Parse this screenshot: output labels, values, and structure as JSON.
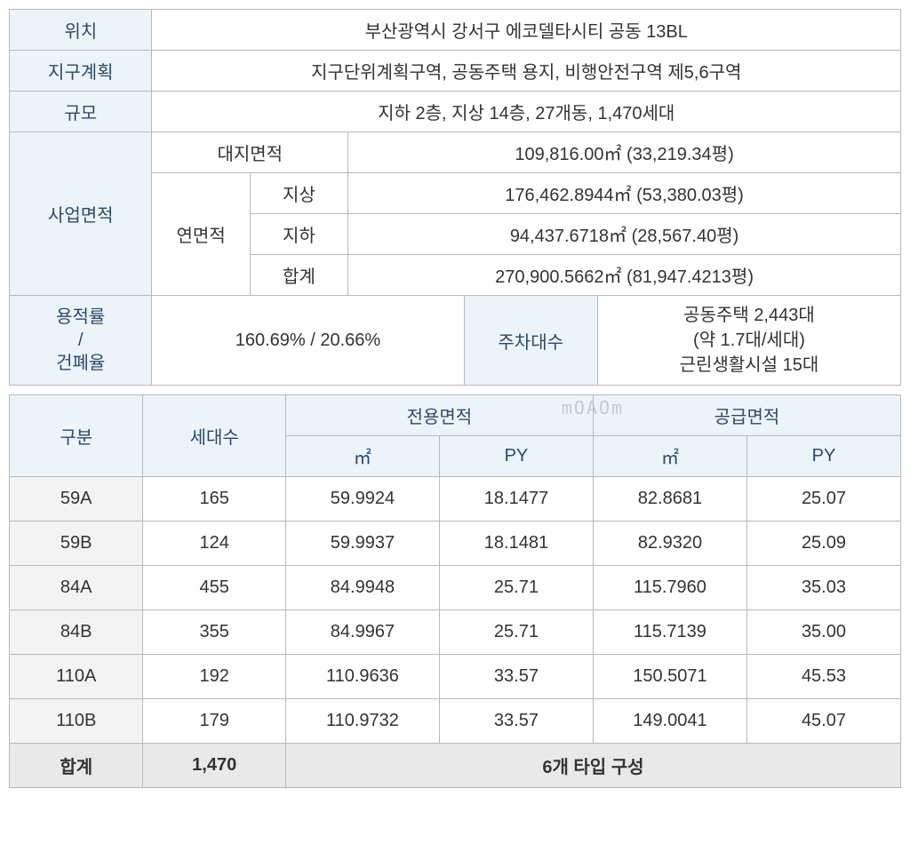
{
  "colors": {
    "header_bg": "#ecf4fa",
    "header_text": "#2a4a6a",
    "border": "#b8b8b8",
    "alt_bg": "#f3f3f3",
    "total_bg": "#e9e9e9",
    "watermark": "#c9c9c9"
  },
  "info": {
    "location_label": "위치",
    "location_value": "부산광역시 강서구 에코델타시티 공동 13BL",
    "district_label": "지구계획",
    "district_value": "지구단위계획구역, 공동주택 용지, 비행안전구역 제5,6구역",
    "scale_label": "규모",
    "scale_value": "지하 2층, 지상 14층, 27개동, 1,470세대",
    "biz_area_label": "사업면적",
    "land_area_label": "대지면적",
    "land_area_value": "109,816.00㎡ (33,219.34평)",
    "floor_area_label": "연면적",
    "above_label": "지상",
    "above_value": "176,462.8944㎡ (53,380.03평)",
    "below_label": "지하",
    "below_value": "94,437.6718㎡ (28,567.40평)",
    "sum_label": "합계",
    "sum_value": "270,900.5662㎡ (81,947.4213평)",
    "ratio_label": "용적률\n/\n건폐율",
    "ratio_value": "160.69% / 20.66%",
    "parking_label": "주차대수",
    "parking_l1": "공동주택 2,443대",
    "parking_l2": "(약 1.7대/세대)",
    "parking_l3": "근린생활시설 15대"
  },
  "units": {
    "headers": {
      "type": "구분",
      "count": "세대수",
      "exclusive": "전용면적",
      "supply": "공급면적",
      "m2": "㎡",
      "py": "PY"
    },
    "watermark": "mOAOm",
    "rows": [
      {
        "type": "59A",
        "count": "165",
        "ex_m2": "59.9924",
        "ex_py": "18.1477",
        "su_m2": "82.8681",
        "su_py": "25.07"
      },
      {
        "type": "59B",
        "count": "124",
        "ex_m2": "59.9937",
        "ex_py": "18.1481",
        "su_m2": "82.9320",
        "su_py": "25.09"
      },
      {
        "type": "84A",
        "count": "455",
        "ex_m2": "84.9948",
        "ex_py": "25.71",
        "su_m2": "115.7960",
        "su_py": "35.03"
      },
      {
        "type": "84B",
        "count": "355",
        "ex_m2": "84.9967",
        "ex_py": "25.71",
        "su_m2": "115.7139",
        "su_py": "35.00"
      },
      {
        "type": "110A",
        "count": "192",
        "ex_m2": "110.9636",
        "ex_py": "33.57",
        "su_m2": "150.5071",
        "su_py": "45.53"
      },
      {
        "type": "110B",
        "count": "179",
        "ex_m2": "110.9732",
        "ex_py": "33.57",
        "su_m2": "149.0041",
        "su_py": "45.07"
      }
    ],
    "total": {
      "label": "합계",
      "count": "1,470",
      "note": "6개 타입 구성"
    }
  }
}
